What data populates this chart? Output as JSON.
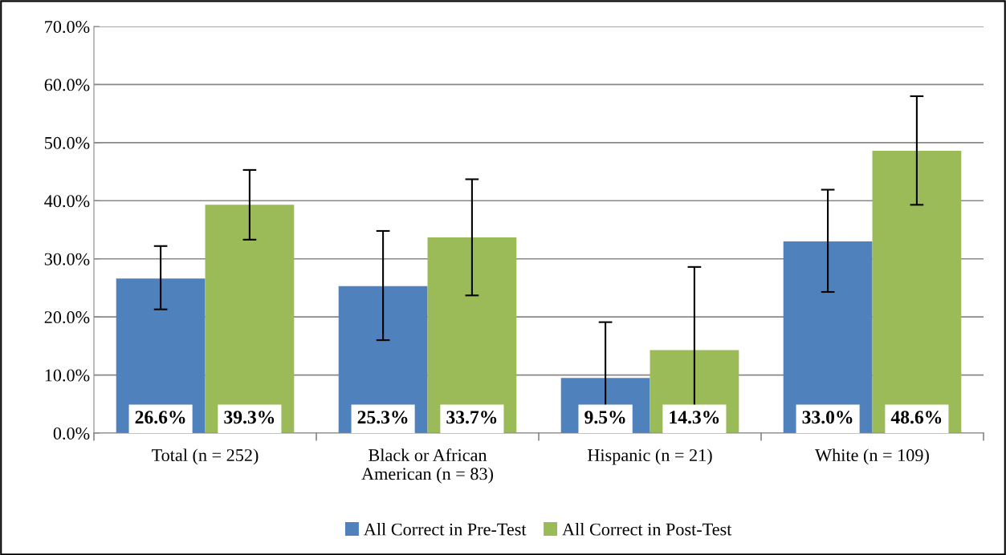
{
  "chart_data": {
    "type": "bar",
    "categories": [
      "Total (n = 252)",
      "Black or African\nAmerican (n = 83)",
      "Hispanic (n = 21)",
      "White (n = 109)"
    ],
    "series": [
      {
        "name": "All Correct in Pre-Test",
        "color": "#4f81bd",
        "values": [
          26.6,
          25.3,
          9.5,
          33.0
        ],
        "value_labels": [
          "26.6%",
          "25.3%",
          "9.5%",
          "33.0%"
        ],
        "errors": [
          [
            21.3,
            32.2
          ],
          [
            16.0,
            34.8
          ],
          [
            0.0,
            19.1
          ],
          [
            24.3,
            41.9
          ]
        ]
      },
      {
        "name": "All Correct in Post-Test",
        "color": "#9bbb59",
        "values": [
          39.3,
          33.7,
          14.3,
          48.6
        ],
        "value_labels": [
          "39.3%",
          "33.7%",
          "14.3%",
          "48.6%"
        ],
        "errors": [
          [
            33.3,
            45.3
          ],
          [
            23.7,
            43.7
          ],
          [
            0.0,
            28.6
          ],
          [
            39.3,
            58.0
          ]
        ]
      }
    ],
    "ylim": [
      0,
      70
    ],
    "yticks": [
      {
        "value": 0,
        "label": "0.0%"
      },
      {
        "value": 10,
        "label": "10.0%"
      },
      {
        "value": 20,
        "label": "20.0%"
      },
      {
        "value": 30,
        "label": "30.0%"
      },
      {
        "value": 40,
        "label": "40.0%"
      },
      {
        "value": 50,
        "label": "50.0%"
      },
      {
        "value": 60,
        "label": "60.0%"
      },
      {
        "value": 70,
        "label": "70.0%"
      }
    ],
    "grid": "y",
    "legend": "bottom"
  }
}
